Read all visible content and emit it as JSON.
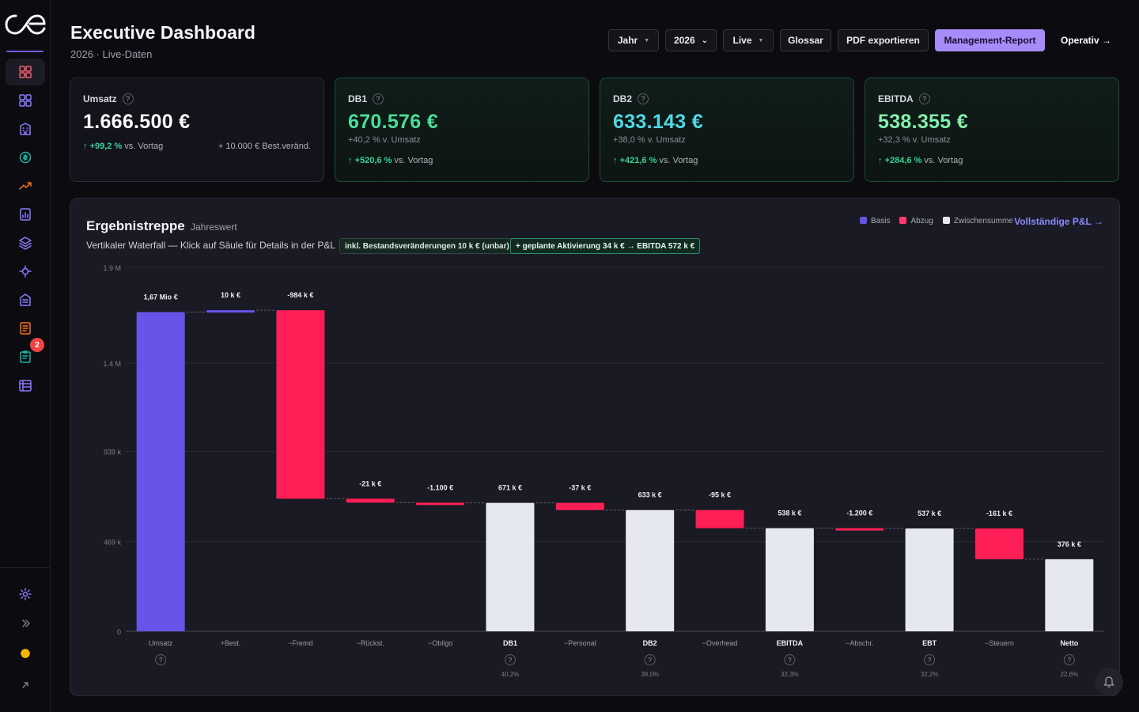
{
  "sidebar": {
    "nav_icons": [
      "dashboard-icon",
      "grid-icon",
      "building-icon",
      "coin-icon",
      "trending-up-icon",
      "report-chart-icon",
      "layers-icon",
      "dollar-network-icon",
      "bank-icon",
      "document-list-icon",
      "clipboard-icon",
      "calendar-grid-icon"
    ],
    "notification_count": "2",
    "bottom_icons": [
      "settings-icon",
      "expand-chevrons-icon",
      "theme-sun-icon",
      "external-link-icon"
    ]
  },
  "header": {
    "title": "Executive Dashboard",
    "subtitle": "2026 · Live-Daten",
    "buttons": {
      "jahr": "Jahr",
      "year": "2026",
      "live": "Live",
      "glossar": "Glossar",
      "pdf": "PDF exportieren",
      "management": "Management-Report",
      "operativ": "Operativ →"
    }
  },
  "kpis": [
    {
      "label": "Umsatz",
      "value": "1.666.500 €",
      "trend_pct": "↑ +99,2 %",
      "trend_text": "vs. Vortag",
      "side_note": "+ 10.000 € Best.veränd.",
      "color": "#ffffff"
    },
    {
      "label": "DB1",
      "value": "670.576 €",
      "sub": "+40,2 % v. Umsatz",
      "trend_pct": "↑ +520,6 %",
      "trend_text": "vs. Vortag",
      "color": "#4ade9a"
    },
    {
      "label": "DB2",
      "value": "633.143 €",
      "sub": "+38,0 % v. Umsatz",
      "trend_pct": "↑ +421,6 %",
      "trend_text": "vs. Vortag",
      "color": "#4fd8e8"
    },
    {
      "label": "EBITDA",
      "value": "538.355 €",
      "sub": "+32,3 % v. Umsatz",
      "trend_pct": "↑ +284,6 %",
      "trend_text": "vs. Vortag",
      "color": "#86efac"
    }
  ],
  "panel": {
    "title": "Ergebnistreppe",
    "title_note": "Jahreswert",
    "subtitle": "Vertikaler Waterfall — Klick auf Säule für Details in der P&L",
    "chip1": "inkl. Bestandsveränderungen 10 k € (unbar)",
    "chip2": "+ geplante Aktivierung 34 k € → EBITDA 572 k €",
    "legend": {
      "basis": "Basis",
      "abzug": "Abzug",
      "zwischensumme": "Zwischensumme"
    },
    "link": "Vollständige P&L →"
  },
  "colors": {
    "basis": "#6655e8",
    "abzug": "#ff1f56",
    "zwischensumme": "#e6e8f0",
    "grid": "#2a2a36"
  },
  "chart_data": {
    "type": "bar",
    "subtype": "waterfall",
    "title": "Ergebnistreppe",
    "ylim": [
      0,
      1900000
    ],
    "yticks": [
      0,
      469000,
      939000,
      1400000,
      1900000
    ],
    "ytick_labels": [
      "0",
      "469 k",
      "939 k",
      "1.4 M",
      "1.9 M"
    ],
    "grid": true,
    "legend_position": "top-right",
    "bars": [
      {
        "category": "Umsatz",
        "kind": "basis",
        "start": 0,
        "end": 1666500,
        "label": "1,67 Mio €",
        "help": true,
        "pct": ""
      },
      {
        "category": "+Best.",
        "kind": "basis",
        "start": 1666500,
        "end": 1676500,
        "label": "10 k €",
        "help": false,
        "pct": ""
      },
      {
        "category": "−Fremd",
        "kind": "abzug",
        "start": 1676500,
        "end": 692500,
        "label": "-984 k €",
        "help": false,
        "pct": ""
      },
      {
        "category": "−Rückst.",
        "kind": "abzug",
        "start": 692500,
        "end": 671600,
        "label": "-21 k €",
        "help": false,
        "pct": ""
      },
      {
        "category": "−Obligo",
        "kind": "abzug",
        "start": 671600,
        "end": 670500,
        "label": "-1.100 €",
        "help": false,
        "pct": ""
      },
      {
        "category": "DB1",
        "kind": "zwischensumme",
        "start": 0,
        "end": 670576,
        "label": "671 k €",
        "help": true,
        "pct": "40,2%"
      },
      {
        "category": "−Personal",
        "kind": "abzug",
        "start": 670576,
        "end": 633143,
        "label": "-37 k €",
        "help": false,
        "pct": ""
      },
      {
        "category": "DB2",
        "kind": "zwischensumme",
        "start": 0,
        "end": 633143,
        "label": "633 k €",
        "help": true,
        "pct": "38,0%"
      },
      {
        "category": "−Overhead",
        "kind": "abzug",
        "start": 633143,
        "end": 538355,
        "label": "-95 k €",
        "help": false,
        "pct": ""
      },
      {
        "category": "EBITDA",
        "kind": "zwischensumme",
        "start": 0,
        "end": 538355,
        "label": "538 k €",
        "help": true,
        "pct": "32,3%"
      },
      {
        "category": "−Abschr.",
        "kind": "abzug",
        "start": 538355,
        "end": 537155,
        "label": "-1.200 €",
        "help": false,
        "pct": ""
      },
      {
        "category": "EBT",
        "kind": "zwischensumme",
        "start": 0,
        "end": 537155,
        "label": "537 k €",
        "help": true,
        "pct": "32,2%"
      },
      {
        "category": "−Steuern",
        "kind": "abzug",
        "start": 537155,
        "end": 376155,
        "label": "-161 k €",
        "help": false,
        "pct": ""
      },
      {
        "category": "Netto",
        "kind": "zwischensumme",
        "start": 0,
        "end": 376155,
        "label": "376 k €",
        "help": true,
        "pct": "22,6%"
      }
    ]
  }
}
